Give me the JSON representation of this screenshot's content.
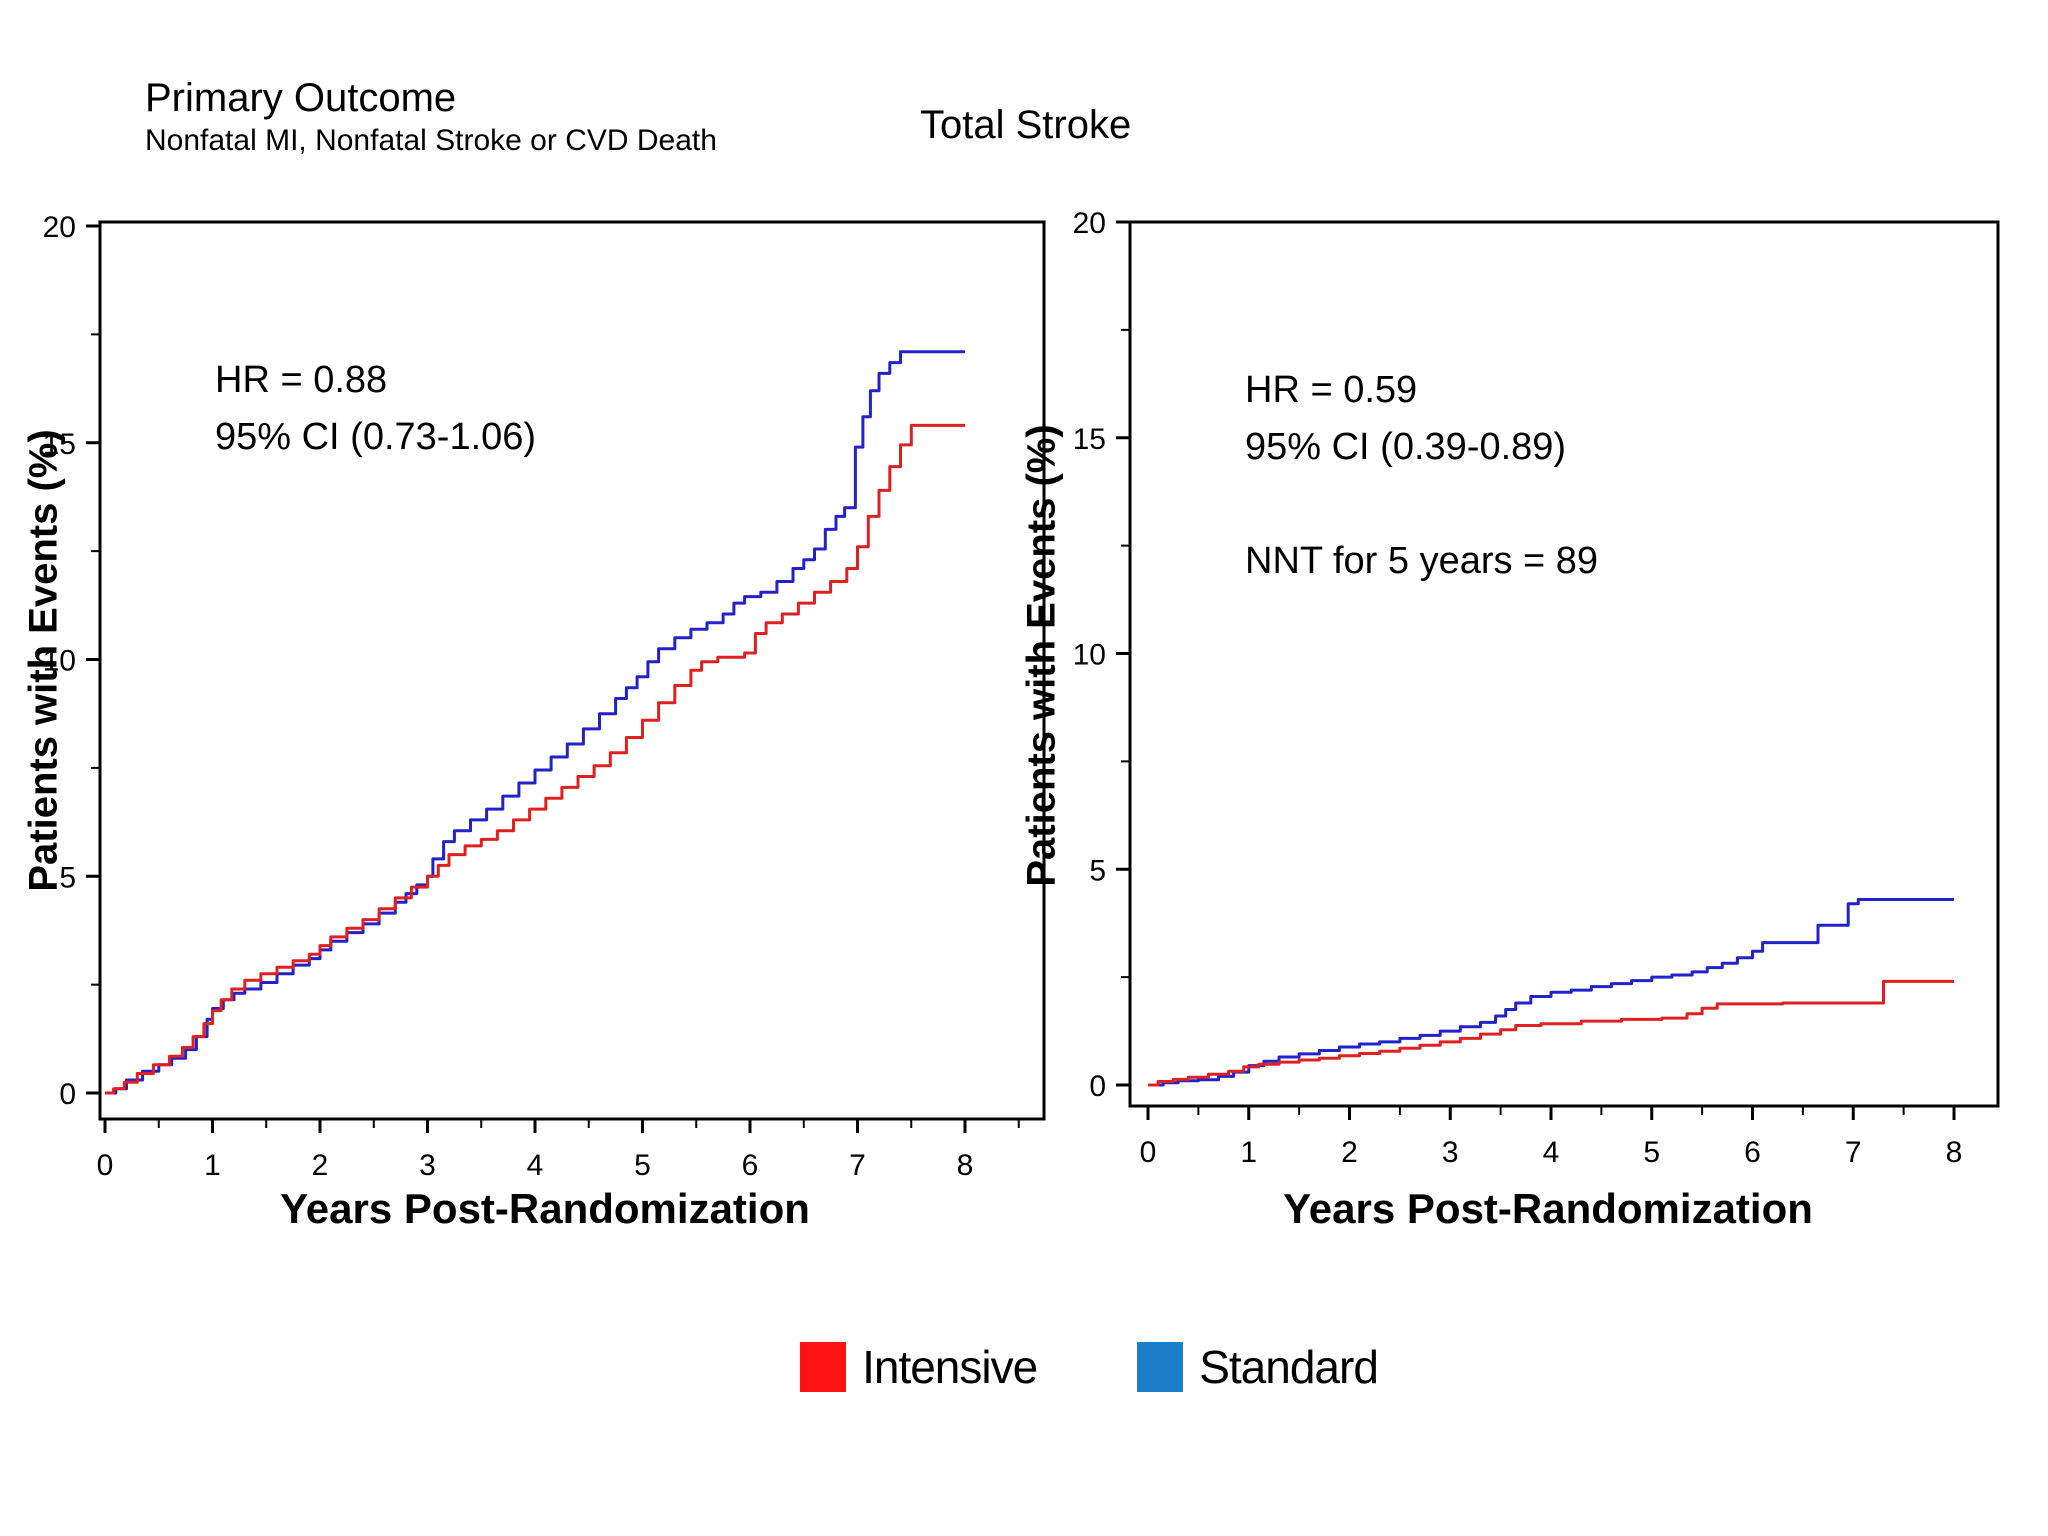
{
  "legend": {
    "items": [
      {
        "label": "Intensive",
        "color": "#ff1212"
      },
      {
        "label": "Standard",
        "color": "#1b7ec6"
      }
    ]
  },
  "chart_data": [
    {
      "type": "line",
      "step": "after",
      "title": "Primary Outcome",
      "subtitle": "Nonfatal MI, Nonfatal Stroke or CVD Death",
      "xlabel": "Years Post-Randomization",
      "ylabel": "Patients with Events (%)",
      "xlim": [
        0,
        8
      ],
      "ylim": [
        0,
        20
      ],
      "xticks": [
        0,
        1,
        2,
        3,
        4,
        5,
        6,
        7,
        8
      ],
      "yticks": [
        0,
        5,
        10,
        15,
        20
      ],
      "minor_x_step": 0.5,
      "minor_y_step": 2.5,
      "grid": false,
      "annotations": [
        "HR = 0.88",
        "95% CI (0.73-1.06)"
      ],
      "series": [
        {
          "name": "Standard",
          "color": "#2222cc",
          "points": [
            [
              0,
              0
            ],
            [
              0.1,
              0.1
            ],
            [
              0.2,
              0.3
            ],
            [
              0.35,
              0.5
            ],
            [
              0.5,
              0.65
            ],
            [
              0.62,
              0.8
            ],
            [
              0.75,
              1.0
            ],
            [
              0.85,
              1.3
            ],
            [
              0.95,
              1.7
            ],
            [
              1.0,
              1.95
            ],
            [
              1.1,
              2.15
            ],
            [
              1.2,
              2.3
            ],
            [
              1.3,
              2.4
            ],
            [
              1.45,
              2.55
            ],
            [
              1.6,
              2.75
            ],
            [
              1.75,
              2.95
            ],
            [
              1.9,
              3.1
            ],
            [
              2.0,
              3.3
            ],
            [
              2.1,
              3.5
            ],
            [
              2.25,
              3.7
            ],
            [
              2.4,
              3.9
            ],
            [
              2.55,
              4.15
            ],
            [
              2.7,
              4.4
            ],
            [
              2.8,
              4.6
            ],
            [
              2.9,
              4.8
            ],
            [
              3.0,
              5.0
            ],
            [
              3.05,
              5.4
            ],
            [
              3.15,
              5.8
            ],
            [
              3.25,
              6.05
            ],
            [
              3.4,
              6.3
            ],
            [
              3.55,
              6.55
            ],
            [
              3.7,
              6.85
            ],
            [
              3.85,
              7.15
            ],
            [
              4.0,
              7.45
            ],
            [
              4.15,
              7.75
            ],
            [
              4.3,
              8.05
            ],
            [
              4.45,
              8.4
            ],
            [
              4.6,
              8.75
            ],
            [
              4.75,
              9.1
            ],
            [
              4.85,
              9.35
            ],
            [
              4.95,
              9.6
            ],
            [
              5.05,
              9.95
            ],
            [
              5.15,
              10.25
            ],
            [
              5.3,
              10.5
            ],
            [
              5.45,
              10.7
            ],
            [
              5.6,
              10.85
            ],
            [
              5.75,
              11.05
            ],
            [
              5.85,
              11.3
            ],
            [
              5.95,
              11.45
            ],
            [
              6.1,
              11.55
            ],
            [
              6.25,
              11.8
            ],
            [
              6.4,
              12.1
            ],
            [
              6.5,
              12.3
            ],
            [
              6.6,
              12.55
            ],
            [
              6.7,
              13.0
            ],
            [
              6.8,
              13.3
            ],
            [
              6.88,
              13.5
            ],
            [
              6.98,
              14.9
            ],
            [
              7.05,
              15.6
            ],
            [
              7.12,
              16.2
            ],
            [
              7.2,
              16.6
            ],
            [
              7.3,
              16.85
            ],
            [
              7.4,
              17.1
            ],
            [
              8.0,
              17.1
            ]
          ]
        },
        {
          "name": "Intensive",
          "color": "#e02020",
          "points": [
            [
              0,
              0
            ],
            [
              0.08,
              0.1
            ],
            [
              0.18,
              0.25
            ],
            [
              0.3,
              0.45
            ],
            [
              0.45,
              0.65
            ],
            [
              0.6,
              0.85
            ],
            [
              0.72,
              1.05
            ],
            [
              0.82,
              1.3
            ],
            [
              0.92,
              1.6
            ],
            [
              1.0,
              1.9
            ],
            [
              1.08,
              2.15
            ],
            [
              1.18,
              2.4
            ],
            [
              1.3,
              2.6
            ],
            [
              1.45,
              2.75
            ],
            [
              1.6,
              2.9
            ],
            [
              1.75,
              3.05
            ],
            [
              1.9,
              3.2
            ],
            [
              2.0,
              3.4
            ],
            [
              2.1,
              3.6
            ],
            [
              2.25,
              3.8
            ],
            [
              2.4,
              4.0
            ],
            [
              2.55,
              4.25
            ],
            [
              2.7,
              4.5
            ],
            [
              2.85,
              4.75
            ],
            [
              3.0,
              5.0
            ],
            [
              3.1,
              5.25
            ],
            [
              3.2,
              5.5
            ],
            [
              3.35,
              5.7
            ],
            [
              3.5,
              5.85
            ],
            [
              3.65,
              6.05
            ],
            [
              3.8,
              6.3
            ],
            [
              3.95,
              6.55
            ],
            [
              4.1,
              6.8
            ],
            [
              4.25,
              7.05
            ],
            [
              4.4,
              7.3
            ],
            [
              4.55,
              7.55
            ],
            [
              4.7,
              7.85
            ],
            [
              4.85,
              8.2
            ],
            [
              5.0,
              8.6
            ],
            [
              5.15,
              9.0
            ],
            [
              5.3,
              9.4
            ],
            [
              5.45,
              9.75
            ],
            [
              5.55,
              9.95
            ],
            [
              5.7,
              10.05
            ],
            [
              5.95,
              10.15
            ],
            [
              6.05,
              10.6
            ],
            [
              6.15,
              10.85
            ],
            [
              6.3,
              11.05
            ],
            [
              6.45,
              11.3
            ],
            [
              6.6,
              11.55
            ],
            [
              6.75,
              11.8
            ],
            [
              6.9,
              12.1
            ],
            [
              7.0,
              12.6
            ],
            [
              7.1,
              13.3
            ],
            [
              7.2,
              13.9
            ],
            [
              7.3,
              14.45
            ],
            [
              7.4,
              14.95
            ],
            [
              7.5,
              15.4
            ],
            [
              8.0,
              15.4
            ]
          ]
        }
      ]
    },
    {
      "type": "line",
      "step": "after",
      "title": "Total Stroke",
      "subtitle": "",
      "xlabel": "Years Post-Randomization",
      "ylabel": "Patients with Events (%)",
      "xlim": [
        0,
        8
      ],
      "ylim": [
        0,
        20
      ],
      "xticks": [
        0,
        1,
        2,
        3,
        4,
        5,
        6,
        7,
        8
      ],
      "yticks": [
        0,
        5,
        10,
        15,
        20
      ],
      "minor_x_step": 0.5,
      "minor_y_step": 2.5,
      "grid": false,
      "annotations": [
        "HR = 0.59",
        "95% CI (0.39-0.89)",
        "NNT for 5 years = 89"
      ],
      "series": [
        {
          "name": "Standard",
          "color": "#2222cc",
          "points": [
            [
              0,
              0
            ],
            [
              0.15,
              0.05
            ],
            [
              0.3,
              0.1
            ],
            [
              0.5,
              0.12
            ],
            [
              0.7,
              0.2
            ],
            [
              0.85,
              0.3
            ],
            [
              1.0,
              0.45
            ],
            [
              1.15,
              0.55
            ],
            [
              1.3,
              0.65
            ],
            [
              1.5,
              0.72
            ],
            [
              1.7,
              0.8
            ],
            [
              1.9,
              0.88
            ],
            [
              2.1,
              0.95
            ],
            [
              2.3,
              1.0
            ],
            [
              2.5,
              1.08
            ],
            [
              2.7,
              1.15
            ],
            [
              2.9,
              1.25
            ],
            [
              3.1,
              1.35
            ],
            [
              3.3,
              1.45
            ],
            [
              3.45,
              1.6
            ],
            [
              3.55,
              1.75
            ],
            [
              3.65,
              1.9
            ],
            [
              3.8,
              2.05
            ],
            [
              4.0,
              2.15
            ],
            [
              4.2,
              2.2
            ],
            [
              4.4,
              2.28
            ],
            [
              4.6,
              2.35
            ],
            [
              4.8,
              2.42
            ],
            [
              5.0,
              2.5
            ],
            [
              5.2,
              2.55
            ],
            [
              5.4,
              2.62
            ],
            [
              5.55,
              2.72
            ],
            [
              5.7,
              2.82
            ],
            [
              5.85,
              2.95
            ],
            [
              6.0,
              3.1
            ],
            [
              6.1,
              3.3
            ],
            [
              6.65,
              3.7
            ],
            [
              6.95,
              4.2
            ],
            [
              7.05,
              4.3
            ],
            [
              8.0,
              4.3
            ]
          ]
        },
        {
          "name": "Intensive",
          "color": "#e02020",
          "points": [
            [
              0,
              0
            ],
            [
              0.1,
              0.08
            ],
            [
              0.25,
              0.13
            ],
            [
              0.4,
              0.18
            ],
            [
              0.6,
              0.25
            ],
            [
              0.8,
              0.32
            ],
            [
              0.95,
              0.42
            ],
            [
              1.1,
              0.48
            ],
            [
              1.3,
              0.53
            ],
            [
              1.5,
              0.58
            ],
            [
              1.7,
              0.62
            ],
            [
              1.9,
              0.68
            ],
            [
              2.1,
              0.73
            ],
            [
              2.3,
              0.78
            ],
            [
              2.5,
              0.85
            ],
            [
              2.7,
              0.92
            ],
            [
              2.9,
              1.0
            ],
            [
              3.1,
              1.08
            ],
            [
              3.3,
              1.18
            ],
            [
              3.5,
              1.28
            ],
            [
              3.65,
              1.38
            ],
            [
              3.9,
              1.42
            ],
            [
              4.3,
              1.48
            ],
            [
              4.7,
              1.52
            ],
            [
              5.1,
              1.55
            ],
            [
              5.35,
              1.65
            ],
            [
              5.5,
              1.78
            ],
            [
              5.65,
              1.88
            ],
            [
              6.3,
              1.9
            ],
            [
              7.3,
              2.4
            ],
            [
              8.0,
              2.4
            ]
          ]
        }
      ]
    }
  ]
}
